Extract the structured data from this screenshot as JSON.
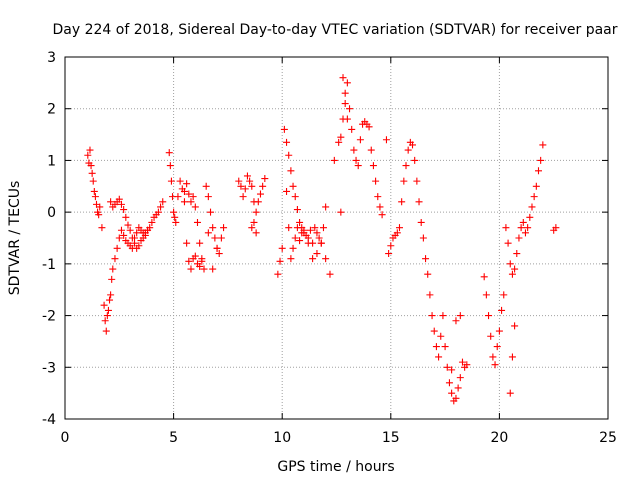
{
  "chart_data": {
    "type": "scatter",
    "title": "Day 224 of 2018, Sidereal Day-to-day VTEC variation (SDTVAR) for receiver paar",
    "xlabel": "GPS time / hours",
    "ylabel": "SDTVAR / TECUs",
    "xlim": [
      0,
      25
    ],
    "ylim": [
      -4,
      3
    ],
    "x_ticks": [
      0,
      5,
      10,
      15,
      20,
      25
    ],
    "y_ticks": [
      -4,
      -3,
      -2,
      -1,
      0,
      1,
      2,
      3
    ],
    "grid": true,
    "marker": "plus",
    "color": "#ff0000",
    "series": [
      {
        "name": "SDTVAR",
        "x": [
          1.05,
          1.1,
          1.15,
          1.2,
          1.25,
          1.3,
          1.35,
          1.4,
          1.45,
          1.5,
          1.55,
          1.6,
          1.7,
          1.8,
          1.85,
          1.9,
          1.95,
          2.0,
          2.05,
          2.1,
          2.15,
          2.2,
          2.3,
          2.4,
          2.5,
          2.6,
          2.7,
          2.8,
          2.9,
          3.0,
          3.1,
          3.2,
          3.3,
          3.4,
          3.5,
          3.6,
          3.7,
          3.8,
          3.9,
          4.0,
          4.1,
          4.2,
          4.3,
          4.4,
          4.5,
          2.1,
          2.2,
          2.3,
          2.4,
          2.5,
          2.6,
          2.7,
          2.8,
          2.9,
          3.0,
          3.1,
          3.2,
          3.3,
          3.4,
          3.5,
          3.6,
          3.7,
          3.8,
          4.8,
          4.85,
          4.9,
          4.95,
          5.0,
          5.05,
          5.1,
          5.2,
          5.3,
          5.4,
          5.5,
          5.6,
          5.7,
          5.8,
          5.9,
          6.0,
          6.1,
          6.2,
          6.3,
          6.4,
          5.5,
          5.6,
          5.7,
          5.8,
          5.9,
          6.0,
          6.1,
          6.2,
          6.3,
          6.5,
          6.6,
          6.7,
          6.8,
          6.9,
          7.0,
          7.1,
          7.2,
          7.3,
          6.6,
          6.8,
          7.0,
          8.0,
          8.1,
          8.2,
          8.3,
          8.4,
          8.5,
          8.6,
          8.7,
          8.8,
          8.9,
          9.0,
          9.1,
          9.2,
          8.6,
          8.7,
          8.8,
          9.8,
          9.9,
          10.0,
          10.1,
          10.2,
          10.3,
          10.4,
          10.5,
          10.6,
          10.7,
          10.8,
          10.9,
          11.0,
          11.1,
          11.2,
          11.3,
          11.4,
          11.5,
          11.6,
          11.7,
          11.8,
          11.9,
          12.0,
          10.2,
          10.3,
          10.4,
          10.5,
          10.6,
          10.7,
          10.8,
          10.9,
          11.0,
          11.2,
          11.4,
          11.6,
          11.8,
          12.0,
          12.2,
          12.4,
          12.6,
          12.7,
          12.8,
          12.9,
          13.0,
          13.1,
          13.2,
          13.3,
          13.4,
          13.5,
          13.6,
          13.7,
          13.8,
          13.9,
          14.0,
          14.1,
          14.2,
          14.3,
          14.4,
          14.5,
          14.6,
          12.7,
          12.8,
          12.9,
          13.0,
          14.8,
          14.9,
          15.0,
          15.1,
          15.2,
          15.3,
          15.4,
          15.5,
          15.6,
          15.7,
          15.8,
          15.9,
          16.0,
          16.1,
          16.2,
          16.3,
          16.4,
          16.5,
          16.6,
          16.7,
          16.8,
          16.9,
          17.0,
          17.1,
          17.2,
          17.3,
          17.4,
          17.5,
          17.6,
          17.7,
          17.8,
          17.9,
          18.0,
          18.1,
          18.2,
          18.3,
          18.4,
          18.5,
          17.8,
          18.0,
          18.2,
          19.3,
          19.4,
          19.5,
          19.6,
          19.7,
          19.8,
          19.9,
          20.0,
          20.1,
          20.2,
          20.3,
          20.4,
          20.5,
          20.6,
          20.7,
          20.8,
          20.9,
          21.0,
          21.1,
          21.2,
          21.3,
          21.4,
          21.5,
          21.6,
          21.7,
          21.8,
          21.9,
          22.0,
          20.5,
          20.6,
          20.7,
          22.5,
          22.6
        ],
        "y": [
          1.1,
          0.95,
          1.2,
          0.9,
          0.75,
          0.6,
          0.4,
          0.3,
          0.15,
          0.0,
          -0.05,
          0.1,
          -0.3,
          -1.8,
          -2.1,
          -2.3,
          -2.0,
          -1.9,
          -1.7,
          -1.6,
          -1.3,
          -1.1,
          -0.9,
          -0.7,
          -0.5,
          -0.35,
          -0.45,
          -0.55,
          -0.6,
          -0.65,
          -0.7,
          -0.5,
          -0.4,
          -0.3,
          -0.35,
          -0.4,
          -0.45,
          -0.35,
          -0.3,
          -0.2,
          -0.1,
          -0.05,
          0.0,
          0.1,
          0.2,
          0.2,
          0.1,
          0.15,
          0.2,
          0.25,
          0.15,
          0.05,
          -0.1,
          -0.25,
          -0.35,
          -0.5,
          -0.6,
          -0.7,
          -0.65,
          -0.55,
          -0.5,
          -0.4,
          -0.35,
          1.15,
          0.9,
          0.6,
          0.3,
          0.0,
          -0.1,
          -0.2,
          0.3,
          0.6,
          0.45,
          0.2,
          -0.6,
          -0.95,
          -1.1,
          -0.9,
          -0.85,
          -1.0,
          -1.05,
          -0.95,
          -1.1,
          0.4,
          0.55,
          0.35,
          0.2,
          0.3,
          0.1,
          -0.2,
          -0.6,
          -0.9,
          0.5,
          0.3,
          0.0,
          -0.3,
          -0.5,
          -0.7,
          -0.8,
          -0.5,
          -0.3,
          -0.4,
          -1.1,
          -0.7,
          0.6,
          0.5,
          0.3,
          0.45,
          0.7,
          0.6,
          0.5,
          0.2,
          0.0,
          0.2,
          0.35,
          0.5,
          0.65,
          -0.3,
          -0.2,
          -0.4,
          -1.2,
          -0.95,
          -0.7,
          1.6,
          1.35,
          1.1,
          0.8,
          0.5,
          0.3,
          0.05,
          -0.2,
          -0.3,
          -0.4,
          -0.45,
          -0.5,
          -0.35,
          -0.6,
          -0.3,
          -0.4,
          -0.5,
          -0.6,
          -0.3,
          0.1,
          0.4,
          -0.3,
          -0.9,
          -0.7,
          -0.5,
          -0.3,
          -0.55,
          -0.4,
          -0.35,
          -0.6,
          -0.9,
          -0.8,
          -0.6,
          -0.9,
          -1.2,
          1.0,
          1.35,
          1.45,
          1.8,
          2.1,
          2.5,
          2.0,
          1.6,
          1.2,
          1.0,
          0.9,
          1.4,
          1.7,
          1.75,
          1.7,
          1.65,
          1.2,
          0.9,
          0.6,
          0.3,
          0.1,
          -0.05,
          0.0,
          2.6,
          2.3,
          1.8,
          1.4,
          -0.8,
          -0.65,
          -0.5,
          -0.45,
          -0.4,
          -0.3,
          0.2,
          0.6,
          0.9,
          1.2,
          1.35,
          1.3,
          1.0,
          0.6,
          0.2,
          -0.2,
          -0.5,
          -0.9,
          -1.2,
          -1.6,
          -2.0,
          -2.3,
          -2.6,
          -2.8,
          -2.4,
          -2.0,
          -2.6,
          -3.0,
          -3.3,
          -3.5,
          -3.65,
          -3.6,
          -3.4,
          -3.2,
          -2.9,
          -3.0,
          -2.95,
          -3.05,
          -2.1,
          -2.0,
          -1.25,
          -1.6,
          -2.0,
          -2.4,
          -2.8,
          -2.95,
          -2.6,
          -2.3,
          -1.9,
          -1.6,
          -0.3,
          -0.6,
          -1.0,
          -1.2,
          -1.1,
          -0.8,
          -0.5,
          -0.3,
          -0.2,
          -0.4,
          -0.3,
          -0.1,
          0.1,
          0.3,
          0.5,
          0.8,
          1.0,
          1.3,
          -3.5,
          -2.8,
          -2.2,
          -0.35,
          -0.3
        ]
      }
    ]
  }
}
